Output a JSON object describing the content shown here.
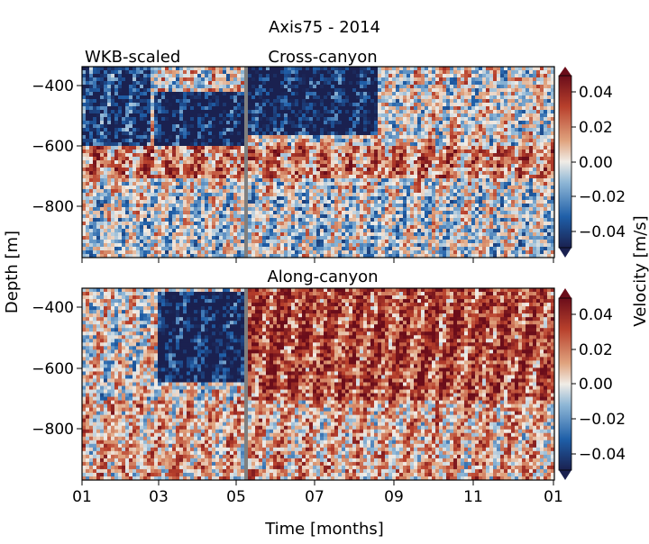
{
  "figure": {
    "title": "Axis75 - 2014",
    "ylabel": "Depth [m]",
    "xlabel": "Time [months]",
    "colorbar_label": "Velocity [m/s]",
    "annotation": "WKB-scaled"
  },
  "colors": {
    "negative_max": "#1a2150",
    "negative_mid": "#1f5fa8",
    "negative_light": "#8fb7d6",
    "neutral": "#f0ece6",
    "positive_light": "#e0a47f",
    "positive_mid": "#b8402c",
    "positive_max": "#6b0d1a",
    "gap": "#7f7f7f"
  },
  "chart_data": [
    {
      "type": "heatmap",
      "title": "Cross-canyon",
      "xlabel": "",
      "ylabel": "Depth [m]",
      "x_ticks": [
        "01",
        "03",
        "05",
        "07",
        "09",
        "11",
        "01"
      ],
      "y_ticks": [
        -400,
        -600,
        -800
      ],
      "ylim": [
        -965,
        -335
      ],
      "xlim_months": [
        0,
        12
      ],
      "data_gaps_months": [
        [
          1.72,
          1.78
        ],
        [
          4.12,
          4.22
        ]
      ],
      "colorbar": {
        "ticks": [
          0.04,
          0.02,
          0.0,
          -0.02,
          -0.04
        ],
        "tick_labels": [
          "0.04",
          "0.02",
          "0.00",
          "−0.02",
          "−0.04"
        ],
        "range": [
          -0.05,
          0.05
        ],
        "label": "Velocity [m/s]"
      },
      "approx_structure": [
        {
          "period_months": [
            0,
            1.7
          ],
          "depth_range": [
            -600,
            -335
          ],
          "mean_velocity": -0.04
        },
        {
          "period_months": [
            1.8,
            4.1
          ],
          "depth_range": [
            -600,
            -420
          ],
          "mean_velocity": -0.05
        },
        {
          "period_months": [
            4.25,
            7.5
          ],
          "depth_range": [
            -560,
            -335
          ],
          "mean_velocity": -0.05
        },
        {
          "period_months": [
            0,
            12
          ],
          "depth_range": [
            -700,
            -600
          ],
          "mean_velocity": 0.02
        },
        {
          "period_months": [
            0,
            12
          ],
          "depth_range": [
            -965,
            -750
          ],
          "mean_velocity": -0.005
        }
      ]
    },
    {
      "type": "heatmap",
      "title": "Along-canyon",
      "xlabel": "Time [months]",
      "ylabel": "Depth [m]",
      "x_ticks": [
        "01",
        "03",
        "05",
        "07",
        "09",
        "11",
        "01"
      ],
      "y_ticks": [
        -400,
        -600,
        -800
      ],
      "ylim": [
        -965,
        -335
      ],
      "xlim_months": [
        0,
        12
      ],
      "data_gaps_months": [
        [
          1.72,
          1.78
        ],
        [
          4.12,
          4.22
        ]
      ],
      "colorbar": {
        "ticks": [
          0.04,
          0.02,
          0.0,
          -0.02,
          -0.04
        ],
        "tick_labels": [
          "0.04",
          "0.02",
          "0.00",
          "−0.02",
          "−0.04"
        ],
        "range": [
          -0.05,
          0.05
        ],
        "label": "Velocity [m/s]"
      },
      "approx_structure": [
        {
          "period_months": [
            1.9,
            4.1
          ],
          "depth_range": [
            -640,
            -350
          ],
          "mean_velocity": -0.05
        },
        {
          "period_months": [
            4.25,
            12
          ],
          "depth_range": [
            -700,
            -335
          ],
          "mean_velocity": 0.03
        },
        {
          "period_months": [
            0,
            12
          ],
          "depth_range": [
            -965,
            -700
          ],
          "mean_velocity": 0.01
        }
      ]
    }
  ]
}
